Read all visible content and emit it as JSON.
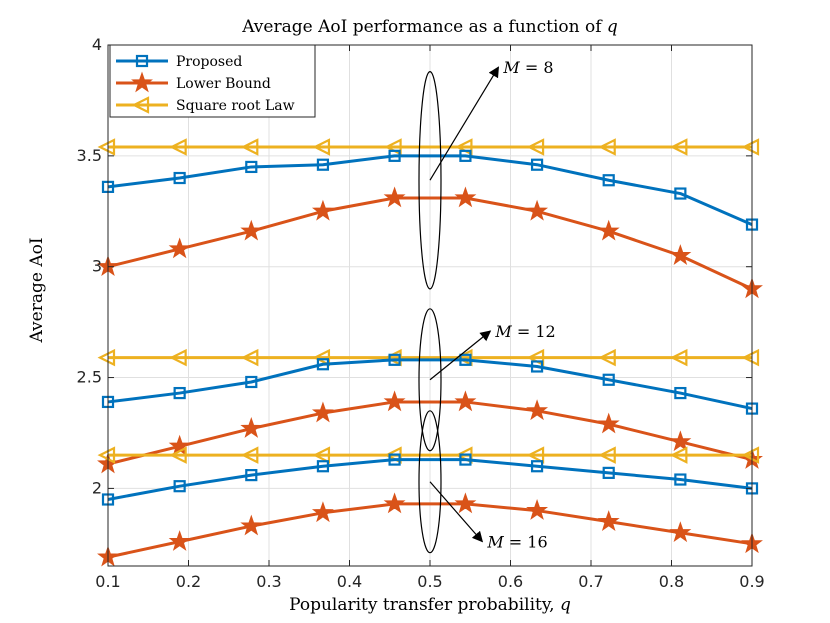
{
  "chart_data": {
    "type": "line",
    "title": "Average AoI performance as a function of q",
    "title_prefix": "Average AoI performance as a function of ",
    "title_var": "q",
    "xlabel": "Popularity transfer probability, q",
    "xlabel_prefix": "Popularity transfer probability, ",
    "xlabel_var": "q",
    "ylabel": "Average AoI",
    "xlim": [
      0.1,
      0.9
    ],
    "ylim": [
      1.65,
      4
    ],
    "grid": true,
    "legend_position": "top-left",
    "xticks": [
      "0.1",
      "0.2",
      "0.3",
      "0.4",
      "0.5",
      "0.6",
      "0.7",
      "0.8",
      "0.9"
    ],
    "yticks": [
      "2",
      "2.5",
      "3",
      "3.5",
      "4"
    ],
    "x": [
      0.1,
      0.189,
      0.278,
      0.367,
      0.456,
      0.544,
      0.633,
      0.722,
      0.811,
      0.9
    ],
    "series": [
      {
        "name": "Proposed",
        "group": "M=8",
        "color": "#0072BD",
        "marker": "square",
        "values": [
          3.36,
          3.4,
          3.45,
          3.46,
          3.5,
          3.5,
          3.46,
          3.39,
          3.33,
          3.19
        ]
      },
      {
        "name": "Lower Bound",
        "group": "M=8",
        "color": "#D95319",
        "marker": "star",
        "values": [
          3.0,
          3.08,
          3.16,
          3.25,
          3.31,
          3.31,
          3.25,
          3.16,
          3.05,
          2.9
        ]
      },
      {
        "name": "Square root Law",
        "group": "M=8",
        "color": "#EDB120",
        "marker": "triangle-left",
        "values": [
          3.54,
          3.54,
          3.54,
          3.54,
          3.54,
          3.54,
          3.54,
          3.54,
          3.54,
          3.54
        ]
      },
      {
        "name": "Proposed",
        "group": "M=12",
        "color": "#0072BD",
        "marker": "square",
        "values": [
          2.39,
          2.43,
          2.48,
          2.56,
          2.58,
          2.58,
          2.55,
          2.49,
          2.43,
          2.36
        ]
      },
      {
        "name": "Lower Bound",
        "group": "M=12",
        "color": "#D95319",
        "marker": "star",
        "values": [
          2.11,
          2.19,
          2.27,
          2.34,
          2.39,
          2.39,
          2.35,
          2.29,
          2.21,
          2.13
        ]
      },
      {
        "name": "Square root Law",
        "group": "M=12",
        "color": "#EDB120",
        "marker": "triangle-left",
        "values": [
          2.59,
          2.59,
          2.59,
          2.59,
          2.59,
          2.59,
          2.59,
          2.59,
          2.59,
          2.59
        ]
      },
      {
        "name": "Proposed",
        "group": "M=16",
        "color": "#0072BD",
        "marker": "square",
        "values": [
          1.95,
          2.01,
          2.06,
          2.1,
          2.13,
          2.13,
          2.1,
          2.07,
          2.04,
          2.0
        ]
      },
      {
        "name": "Lower Bound",
        "group": "M=16",
        "color": "#D95319",
        "marker": "star",
        "values": [
          1.69,
          1.76,
          1.83,
          1.89,
          1.93,
          1.93,
          1.9,
          1.85,
          1.8,
          1.75
        ]
      },
      {
        "name": "Square root Law",
        "group": "M=16",
        "color": "#EDB120",
        "marker": "triangle-left",
        "values": [
          2.15,
          2.15,
          2.15,
          2.15,
          2.15,
          2.15,
          2.15,
          2.15,
          2.15,
          2.15
        ]
      }
    ],
    "legend": [
      {
        "label": "Proposed",
        "color": "#0072BD",
        "marker": "square"
      },
      {
        "label": "Lower Bound",
        "color": "#D95319",
        "marker": "star"
      },
      {
        "label": "Square root Law",
        "color": "#EDB120",
        "marker": "triangle-left"
      }
    ],
    "annotations": [
      {
        "prefix": "M = ",
        "value": "8",
        "ellipse_center": [
          0.5,
          3.39
        ],
        "ellipse_ry": 0.49,
        "arrow_to": [
          0.585,
          3.9
        ]
      },
      {
        "prefix": "M = ",
        "value": "12",
        "ellipse_center": [
          0.5,
          2.49
        ],
        "ellipse_ry": 0.32,
        "arrow_to": [
          0.575,
          2.71
        ]
      },
      {
        "prefix": "M = ",
        "value": "16",
        "ellipse_center": [
          0.5,
          2.03
        ],
        "ellipse_ry": 0.32,
        "arrow_to": [
          0.565,
          1.76
        ]
      }
    ]
  }
}
